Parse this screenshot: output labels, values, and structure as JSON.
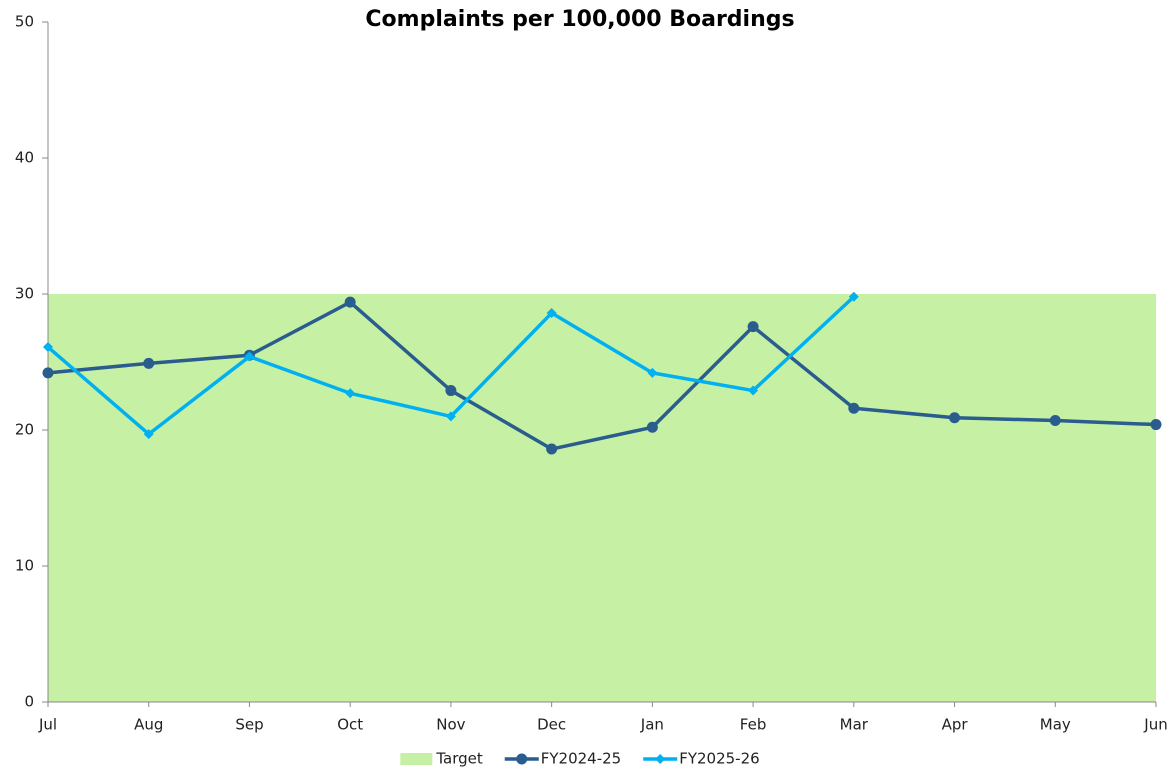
{
  "chart_data": {
    "type": "line",
    "title": "Complaints per 100,000 Boardings",
    "categories": [
      "Jul",
      "Aug",
      "Sep",
      "Oct",
      "Nov",
      "Dec",
      "Jan",
      "Feb",
      "Mar",
      "Apr",
      "May",
      "Jun"
    ],
    "series": [
      {
        "name": "Target",
        "type": "area",
        "color": "#c6f1a4",
        "values": [
          30,
          30,
          30,
          30,
          30,
          30,
          30,
          30,
          30,
          30,
          30,
          30
        ]
      },
      {
        "name": "FY2024-25",
        "type": "line",
        "marker": "circle",
        "color": "#2a5c8e",
        "values": [
          24.2,
          24.9,
          25.5,
          29.4,
          22.9,
          18.6,
          20.2,
          27.6,
          21.6,
          20.9,
          20.7,
          20.4
        ]
      },
      {
        "name": "FY2025-26",
        "type": "line",
        "marker": "diamond",
        "color": "#00b0f0",
        "values": [
          26.1,
          19.7,
          25.4,
          22.7,
          21.0,
          28.6,
          24.2,
          22.9,
          29.8,
          null,
          null,
          null
        ]
      }
    ],
    "ylim": [
      0,
      50
    ],
    "yticks": [
      0,
      10,
      20,
      30,
      40,
      50
    ],
    "legend": "bottom"
  }
}
